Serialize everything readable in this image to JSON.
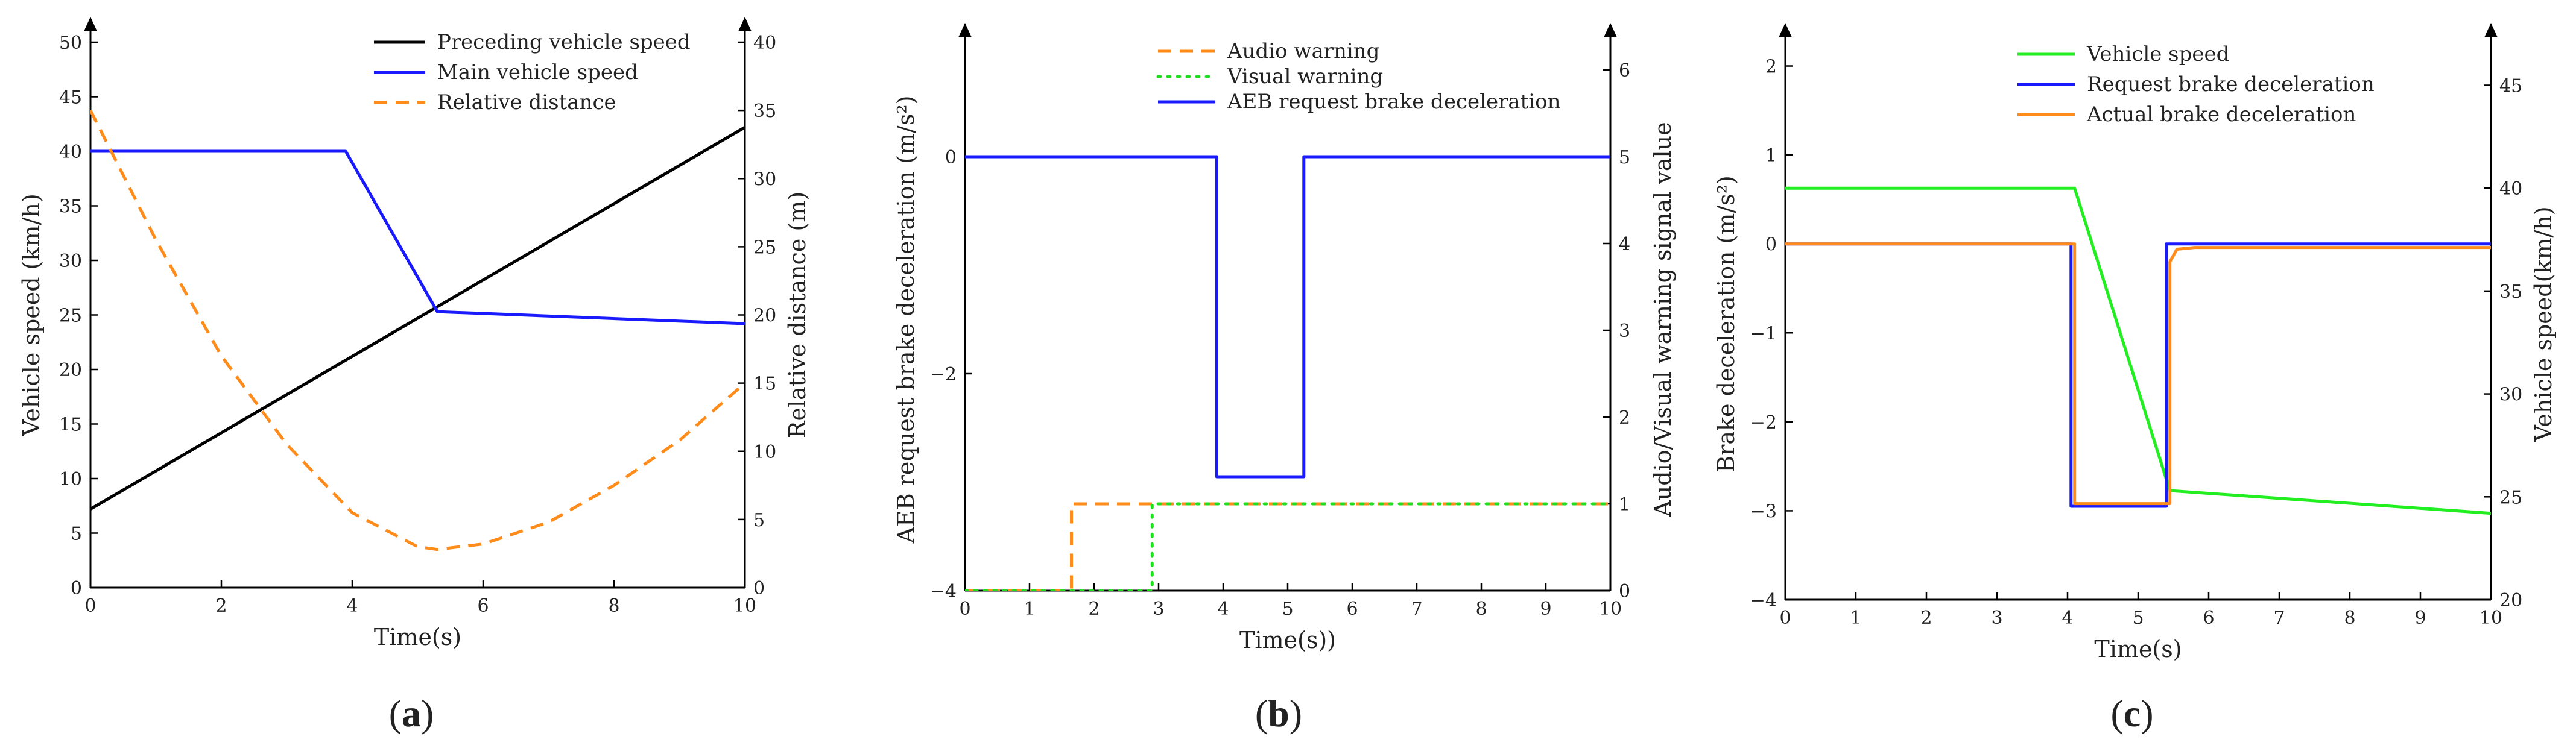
{
  "chart_data": [
    {
      "type": "line",
      "panel_label": "a",
      "xlabel": "Time(s)",
      "ylabel": "Vehicle speed (km/h)",
      "ylabel_right": "Relative distance (m)",
      "xlim": [
        0,
        10
      ],
      "ylim": [
        0,
        50
      ],
      "ylim_right": [
        0,
        40
      ],
      "xticks": [
        "0",
        "2",
        "4",
        "6",
        "8",
        "10"
      ],
      "yticks": [
        "0",
        "5",
        "10",
        "15",
        "20",
        "25",
        "30",
        "35",
        "40",
        "45",
        "50"
      ],
      "yticks_right": [
        "0",
        "5",
        "10",
        "15",
        "20",
        "25",
        "30",
        "35",
        "40"
      ],
      "legend_position": "top-right",
      "series": [
        {
          "name": "Preceding vehicle speed",
          "color": "#000000",
          "dash": "solid",
          "axis": "left",
          "x": [
            0,
            10
          ],
          "y": [
            7.2,
            42.2
          ]
        },
        {
          "name": "Main vehicle speed",
          "color": "#1a1aff",
          "dash": "solid",
          "axis": "left",
          "x": [
            0,
            3.9,
            5.3,
            10
          ],
          "y": [
            40,
            40,
            25.3,
            24.2
          ]
        },
        {
          "name": "Relative distance",
          "color": "#ff8c1a",
          "dash": "dashed",
          "axis": "right",
          "x": [
            0,
            1,
            2,
            3,
            4,
            5,
            5.3,
            6,
            7,
            8,
            9,
            10
          ],
          "y": [
            35,
            25.5,
            17,
            10.5,
            5.5,
            3,
            2.8,
            3.2,
            4.8,
            7.5,
            10.8,
            15
          ]
        }
      ]
    },
    {
      "type": "line",
      "panel_label": "b",
      "xlabel": "Time(s))",
      "ylabel": "AEB request brake deceleration (m/s²)",
      "ylabel_right": "Audio/Visual warning signal value",
      "xlim": [
        0,
        10
      ],
      "ylim": [
        -4,
        1
      ],
      "ylim_right": [
        0,
        6.25
      ],
      "xticks": [
        "0",
        "1",
        "2",
        "3",
        "4",
        "5",
        "6",
        "7",
        "8",
        "9",
        "10"
      ],
      "yticks": [
        "−4",
        "−2",
        "0"
      ],
      "yticks_right": [
        "0",
        "1",
        "2",
        "3",
        "4",
        "5",
        "6"
      ],
      "legend_position": "top-right",
      "series": [
        {
          "name": "Audio warning",
          "color": "#ff8c1a",
          "dash": "dashed",
          "axis": "right",
          "x": [
            0,
            1.65,
            1.65,
            10
          ],
          "y": [
            0,
            0,
            1,
            1
          ]
        },
        {
          "name": "Visual warning",
          "color": "#22dd22",
          "dash": "dotted",
          "axis": "right",
          "x": [
            0,
            2.9,
            2.9,
            10
          ],
          "y": [
            0,
            0,
            1,
            1
          ]
        },
        {
          "name": "AEB request brake deceleration",
          "color": "#1a1aff",
          "dash": "solid",
          "axis": "left",
          "x": [
            0,
            3.9,
            3.9,
            5.25,
            5.25,
            10
          ],
          "y": [
            0,
            0,
            -2.95,
            -2.95,
            0,
            0
          ]
        }
      ]
    },
    {
      "type": "line",
      "panel_label": "c",
      "xlabel": "Time(s)",
      "ylabel": "Brake deceleration (m/s²)",
      "ylabel_right": "Vehicle speed(km/h)",
      "xlim": [
        0,
        10
      ],
      "ylim": [
        -4,
        2.2
      ],
      "ylim_right": [
        20,
        46.8
      ],
      "xticks": [
        "0",
        "1",
        "2",
        "3",
        "4",
        "5",
        "6",
        "7",
        "8",
        "9",
        "10"
      ],
      "yticks": [
        "−4",
        "−3",
        "−2",
        "−1",
        "0",
        "1",
        "2"
      ],
      "yticks_right": [
        "20",
        "25",
        "30",
        "35",
        "40",
        "45"
      ],
      "legend_position": "top-right",
      "series": [
        {
          "name": "Vehicle speed",
          "color": "#22ee22",
          "dash": "solid",
          "axis": "right",
          "x": [
            0,
            4.1,
            5.45,
            10
          ],
          "y": [
            40,
            40,
            25.3,
            24.2
          ]
        },
        {
          "name": "Request brake deceleration",
          "color": "#1a1aff",
          "dash": "solid",
          "axis": "left",
          "x": [
            0,
            4.05,
            4.05,
            5.4,
            5.4,
            10
          ],
          "y": [
            0,
            0,
            -2.95,
            -2.95,
            0,
            0
          ]
        },
        {
          "name": "Actual brake deceleration",
          "color": "#ff8c1a",
          "dash": "solid",
          "axis": "left",
          "x": [
            0,
            4.1,
            4.1,
            5.45,
            5.45,
            5.55,
            5.8,
            10
          ],
          "y": [
            0,
            0,
            -2.92,
            -2.92,
            -0.2,
            -0.06,
            -0.04,
            -0.04
          ]
        }
      ]
    }
  ]
}
